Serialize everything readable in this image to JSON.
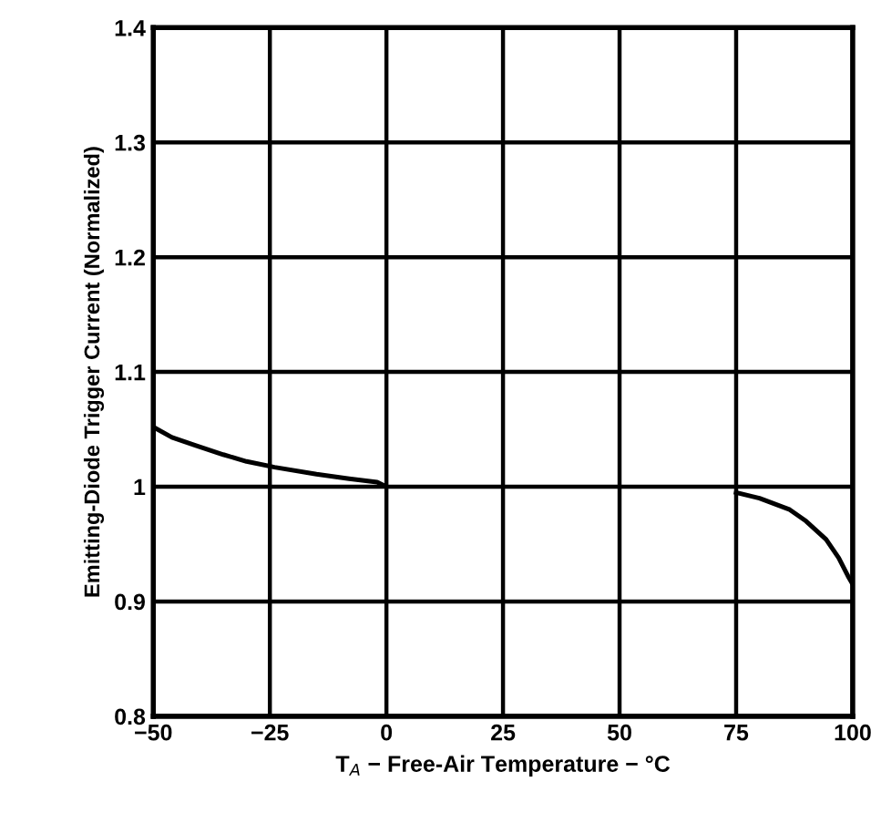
{
  "chart_data": {
    "type": "line",
    "xlabel": "T$_{A}$ − Free-Air Temperature − °C",
    "ylabel": "Emitting-Diode Trigger Current (Normalized)",
    "x": [
      -50,
      -46,
      -41,
      -35,
      -30,
      -24,
      -15,
      -8,
      -2,
      0,
      37,
      75,
      80,
      86.5,
      90,
      94.3,
      97,
      99,
      100
    ],
    "series": [
      {
        "color": "#000000",
        "values": [
          1.052,
          1.043,
          1.036,
          1.028,
          1.022,
          1.017,
          1.011,
          1.007,
          1.004,
          1.0,
          null,
          0.995,
          0.99,
          0.98,
          0.97,
          0.954,
          0.938,
          0.922,
          0.915
        ]
      }
    ],
    "xlim": [
      -50,
      100
    ],
    "ylim": [
      0.8,
      1.4
    ],
    "xticks": [
      {
        "value": -50,
        "label": "−50"
      },
      {
        "value": -25,
        "label": "−25"
      },
      0,
      25,
      50,
      75,
      100
    ],
    "yticks": [
      0.8,
      0.9,
      1,
      1.1,
      1.2,
      1.3,
      1.4
    ],
    "grid": true,
    "marker": "none",
    "line_style": "solid"
  }
}
